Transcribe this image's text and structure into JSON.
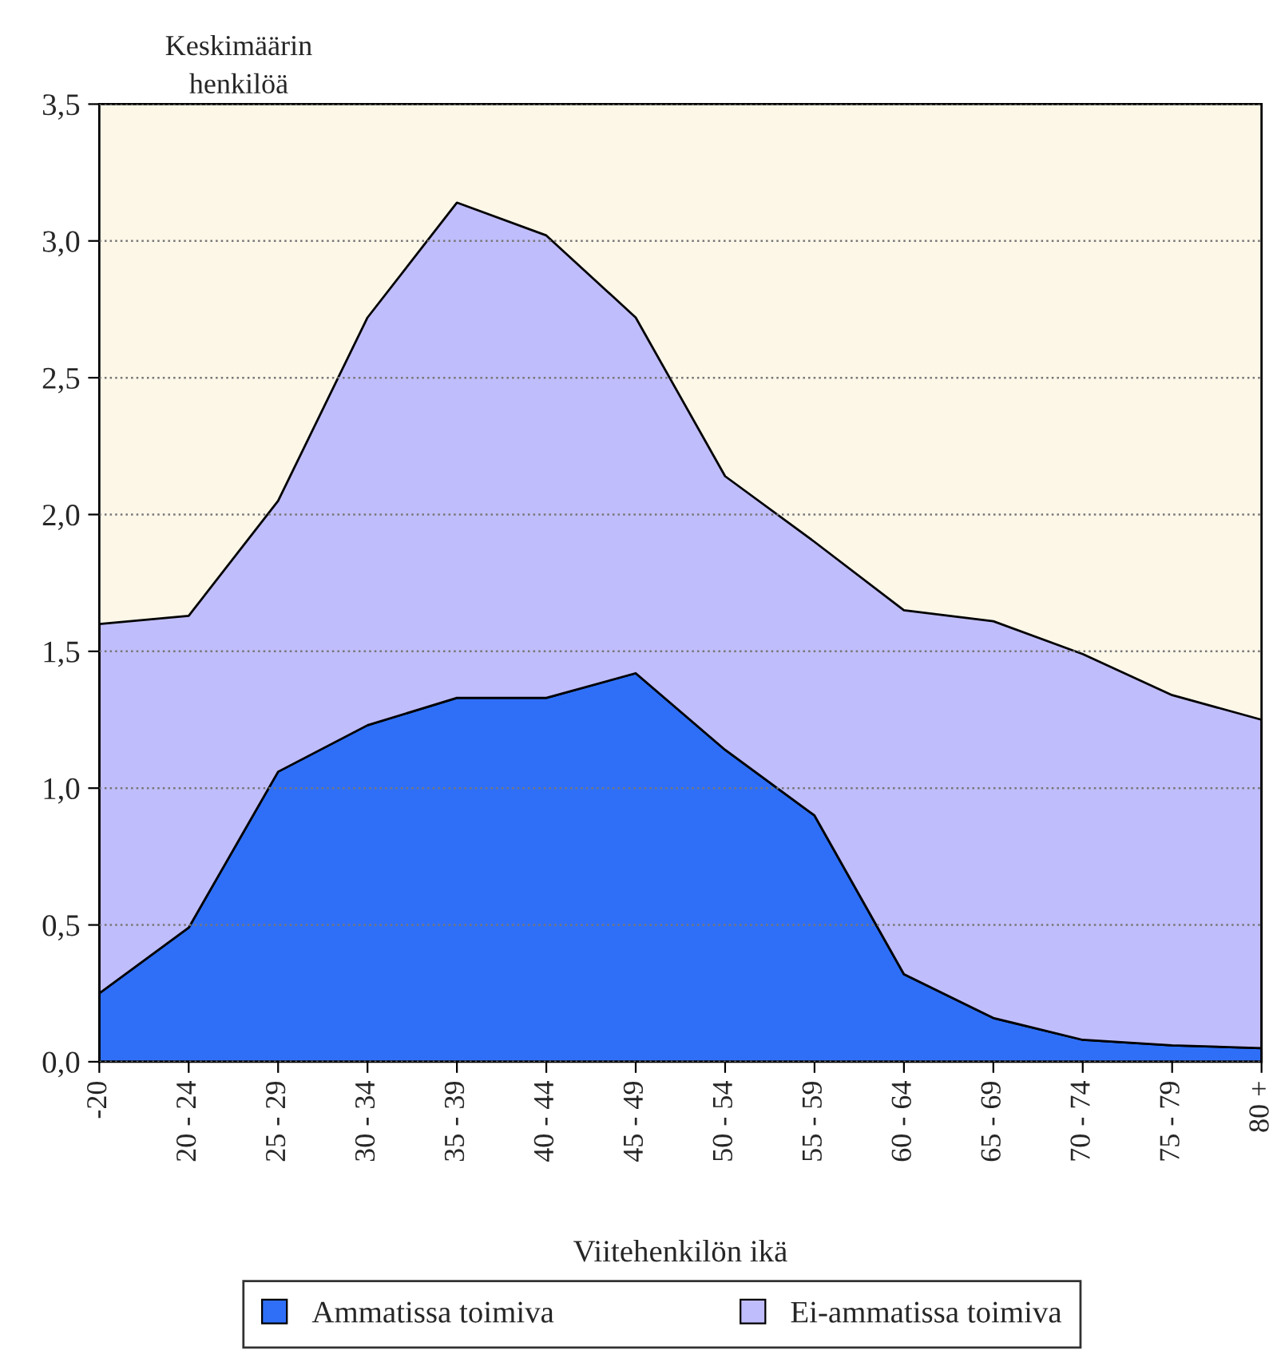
{
  "chart_data": {
    "type": "area",
    "stacked": true,
    "xlabel": "Viitehenkilön ikä",
    "ylabel": "Keskimäärin\nhenkilöä",
    "categories": [
      "-20",
      "20 - 24",
      "25 - 29",
      "30 - 34",
      "35 - 39",
      "40 - 44",
      "45 - 49",
      "50 - 54",
      "55 - 59",
      "60 - 64",
      "65 - 69",
      "70 - 74",
      "75 - 79",
      "80 +"
    ],
    "series": [
      {
        "name": "Ammatissa toimiva",
        "color": "#2f6ff7",
        "values": [
          0.25,
          0.49,
          1.06,
          1.23,
          1.33,
          1.33,
          1.42,
          1.14,
          0.9,
          0.32,
          0.16,
          0.08,
          0.06,
          0.05
        ]
      },
      {
        "name": "Ei-ammatissa toimiva",
        "color": "#c0bdfc",
        "values": [
          1.35,
          1.14,
          0.99,
          1.49,
          1.81,
          1.69,
          1.3,
          1.0,
          1.0,
          1.33,
          1.45,
          1.41,
          1.28,
          1.2
        ]
      }
    ],
    "ylim": [
      0,
      3.5
    ],
    "yticks": [
      {
        "value": 0,
        "label": "0,0"
      },
      {
        "value": 0.5,
        "label": "0,5"
      },
      {
        "value": 1,
        "label": "1,0"
      },
      {
        "value": 1.5,
        "label": "1,5"
      },
      {
        "value": 2,
        "label": "2,0"
      },
      {
        "value": 2.5,
        "label": "2,5"
      },
      {
        "value": 3,
        "label": "3,0"
      },
      {
        "value": 3.5,
        "label": "3,5"
      }
    ],
    "grid": "y",
    "legend": "bottom"
  }
}
